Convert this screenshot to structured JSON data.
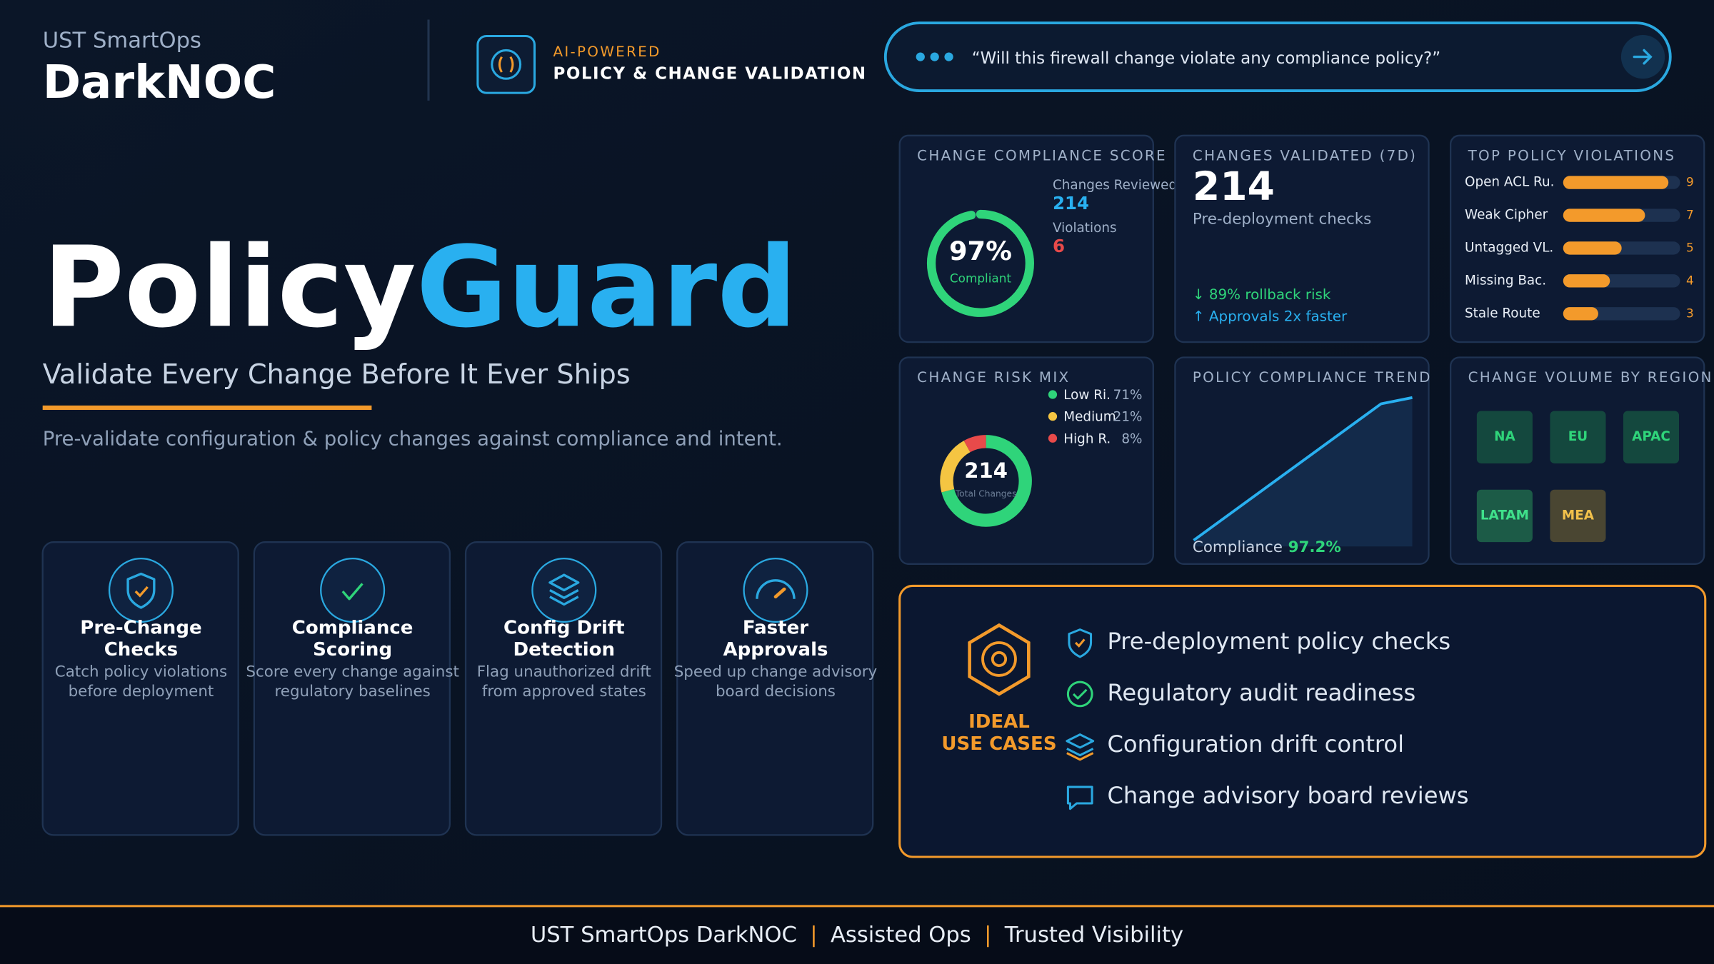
{
  "header": {
    "brand": "UST SmartOps",
    "product": "DarkNOC",
    "badge_kicker": "AI-POWERED",
    "badge_title": "POLICY & CHANGE VALIDATION",
    "query": "“Will this firewall change violate any compliance policy?”"
  },
  "hero": {
    "title_a": "Policy",
    "title_b": "Guard",
    "tagline": "Validate Every Change Before It Ever Ships",
    "description": "Pre-validate configuration & policy changes against compliance and intent."
  },
  "features": [
    {
      "title": [
        "Pre-Change",
        "Checks"
      ],
      "description": [
        "Catch policy violations",
        "before deployment"
      ]
    },
    {
      "title": [
        "Compliance",
        "Scoring"
      ],
      "description": [
        "Score every change against",
        "regulatory baselines"
      ]
    },
    {
      "title": [
        "Config Drift",
        "Detection"
      ],
      "description": [
        "Flag unauthorized drift",
        "from approved states"
      ]
    },
    {
      "title": [
        "Faster",
        "Approvals"
      ],
      "description": [
        "Speed up change advisory",
        "board decisions"
      ]
    }
  ],
  "compliance_score": {
    "title": "CHANGE COMPLIANCE SCORE",
    "score": {
      "value": 97,
      "label": "97%"
    },
    "caption": "Compliant",
    "reviewed_label": "Changes Reviewed",
    "reviewed": 214,
    "violations_label": "Violations",
    "violations": 6
  },
  "validated": {
    "title": "CHANGES VALIDATED (7D)",
    "count": 214,
    "caption": "Pre-deployment checks",
    "notes": [
      "↓ 89% rollback risk",
      "↑ Approvals 2x faster"
    ]
  },
  "top_violations": {
    "title": "TOP POLICY VIOLATIONS",
    "xlim": [
      0,
      10
    ],
    "color": "#f39a2b",
    "items": [
      {
        "name": "Open ACL Ru.",
        "count": 9
      },
      {
        "name": "Weak Cipher",
        "count": 7
      },
      {
        "name": "Untagged VL.",
        "count": 5
      },
      {
        "name": "Missing Bac.",
        "count": 4
      },
      {
        "name": "Stale Route",
        "count": 3
      }
    ]
  },
  "risk_mix": {
    "title": "CHANGE RISK MIX",
    "total": 214,
    "total_label": "Total Changes",
    "segments": [
      {
        "name": "Low Ri.",
        "value": 71,
        "label": "71%",
        "color": "#2fd47a"
      },
      {
        "name": "Medium",
        "value": 21,
        "label": "21%",
        "color": "#f5c542"
      },
      {
        "name": "High R.",
        "value": 8,
        "label": "8%",
        "color": "#e84a4a"
      }
    ]
  },
  "trend": {
    "title": "POLICY COMPLIANCE TREND",
    "caption": "Compliance",
    "value_label": "97.2%",
    "x": [
      0,
      6,
      7
    ],
    "values": [
      90.3,
      96.9,
      97.2
    ],
    "xlim": [
      0,
      7
    ],
    "ylim": [
      90,
      97.4
    ],
    "color": "#29b0f0"
  },
  "regions": {
    "title": "CHANGE VOLUME BY REGION",
    "items": [
      {
        "name": "NA",
        "color": "#14483e",
        "text_color": "#2fd47a"
      },
      {
        "name": "EU",
        "color": "#14483e",
        "text_color": "#2fd47a"
      },
      {
        "name": "APAC",
        "color": "#14483e",
        "text_color": "#2fd47a"
      },
      {
        "name": "LATAM",
        "color": "#1c5b47",
        "text_color": "#3fe08a"
      },
      {
        "name": "MEA",
        "color": "#4a4632",
        "text_color": "#f2c14b"
      }
    ]
  },
  "use_cases": {
    "heading": [
      "IDEAL",
      "USE CASES"
    ],
    "items": [
      "Pre-deployment policy checks",
      "Regulatory audit readiness",
      "Configuration drift control",
      "Change advisory board reviews"
    ]
  },
  "footer": {
    "items": [
      "UST SmartOps DarkNOC",
      "Assisted Ops",
      "Trusted Visibility"
    ],
    "separator": "|"
  }
}
